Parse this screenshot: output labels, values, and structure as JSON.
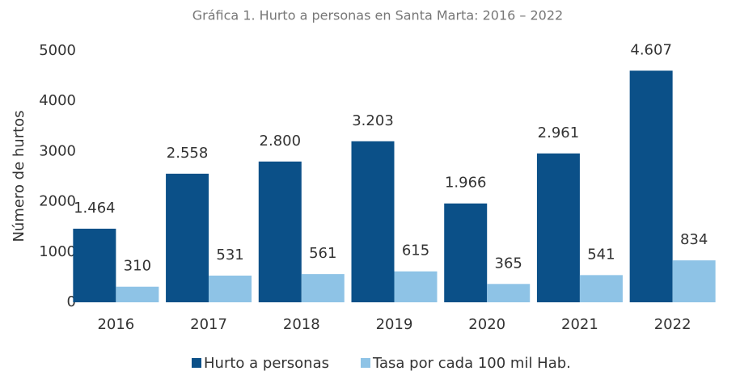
{
  "chart_data": {
    "type": "bar",
    "title": "Gráfica 1. Hurto a personas en Santa Marta: 2016 – 2022",
    "y_label": "Número de hurtos",
    "categories": [
      "2016",
      "2017",
      "2018",
      "2019",
      "2020",
      "2021",
      "2022"
    ],
    "series": [
      {
        "name": "Hurto a personas",
        "color": "#0b5088",
        "values": [
          1464,
          2558,
          2800,
          3203,
          1966,
          2961,
          4607
        ],
        "value_labels": [
          "1.464",
          "2.558",
          "2.800",
          "3.203",
          "1.966",
          "2.961",
          "4.607"
        ]
      },
      {
        "name": "Tasa por cada 100 mil Hab.",
        "color": "#8ec3e6",
        "values": [
          310,
          531,
          561,
          615,
          365,
          541,
          834
        ]
      }
    ],
    "ylim": [
      0,
      5000
    ],
    "yticks": [
      0,
      1000,
      2000,
      3000,
      4000,
      5000
    ],
    "grid": false,
    "legend": "bottom"
  }
}
